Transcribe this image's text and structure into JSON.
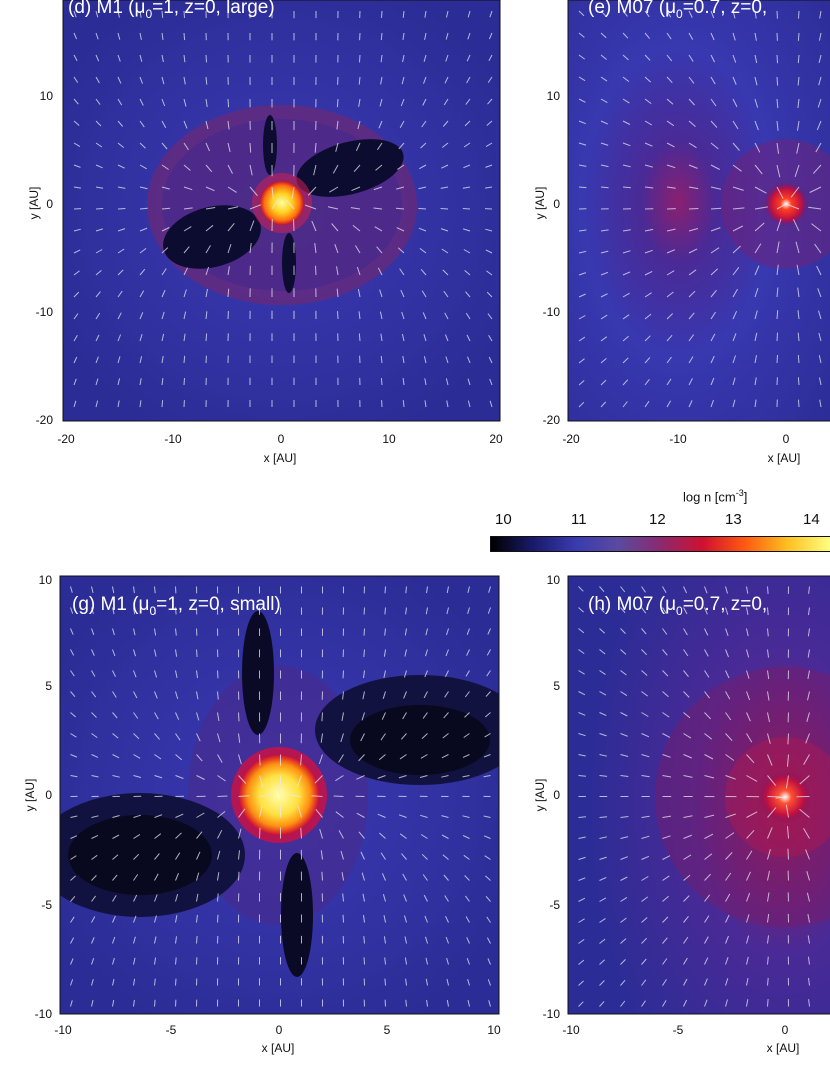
{
  "panels": [
    {
      "id": "d",
      "title": "(d) M1 (μ0=1, z=0, large)",
      "title_parts": [
        "(d) M1 (μ",
        "0",
        "=1, z=0, large)"
      ],
      "xlabel": "x [AU]",
      "ylabel": "y [AU]",
      "xticks": [
        "-20",
        "-10",
        "0",
        "10",
        "20"
      ],
      "yticks": [
        "10",
        "0",
        "-10",
        "-20"
      ],
      "xlim": [
        -20,
        20
      ],
      "ylim": [
        -20,
        20
      ],
      "structure": "four-lobed"
    },
    {
      "id": "e",
      "title": "(e) M07 (μ0=0.7, z=0,",
      "title_parts": [
        "(e) M07 (μ",
        "0",
        "=0.7, z=0,"
      ],
      "xlabel": "x [AU]",
      "ylabel": "y [AU]",
      "xticks": [
        "-20",
        "-10",
        "0"
      ],
      "yticks": [
        "10",
        "0",
        "-10",
        "-20"
      ],
      "xlim": [
        -20,
        20
      ],
      "ylim": [
        -20,
        20
      ],
      "structure": "central-peak"
    },
    {
      "id": "g",
      "title": "(g) M1 (μ0=1, z=0, small)",
      "title_parts": [
        "(g) M1 (μ",
        "0",
        "=1, z=0, small)"
      ],
      "xlabel": "x [AU]",
      "ylabel": "y [AU]",
      "xticks": [
        "-10",
        "-5",
        "0",
        "5",
        "10"
      ],
      "yticks": [
        "10",
        "5",
        "0",
        "-5",
        "-10"
      ],
      "xlim": [
        -10,
        10
      ],
      "ylim": [
        -10,
        10
      ],
      "structure": "four-lobed-zoom"
    },
    {
      "id": "h",
      "title": "(h) M07 (μ0=0.7, z=0,",
      "title_parts": [
        "(h) M07 (μ",
        "0",
        "=0.7, z=0,"
      ],
      "xlabel": "x [AU]",
      "ylabel": "y [AU]",
      "xticks": [
        "-10",
        "-5",
        "0"
      ],
      "yticks": [
        "10",
        "5",
        "0",
        "-5",
        "-10"
      ],
      "xlim": [
        -10,
        10
      ],
      "ylim": [
        -10,
        10
      ],
      "structure": "central-peak-zoom"
    }
  ],
  "colorbar": {
    "title": "log n [cm-3]",
    "title_main": "log n [cm",
    "title_sup": "-3",
    "title_end": "]",
    "ticks": [
      "10",
      "11",
      "12",
      "13",
      "14"
    ],
    "range": [
      10,
      14.5
    ],
    "colors": [
      "#000000",
      "#1a1a6b",
      "#3a3ab0",
      "#5a4aa0",
      "#8a2a70",
      "#d01030",
      "#ff5a10",
      "#ffc020",
      "#ffff80"
    ]
  }
}
